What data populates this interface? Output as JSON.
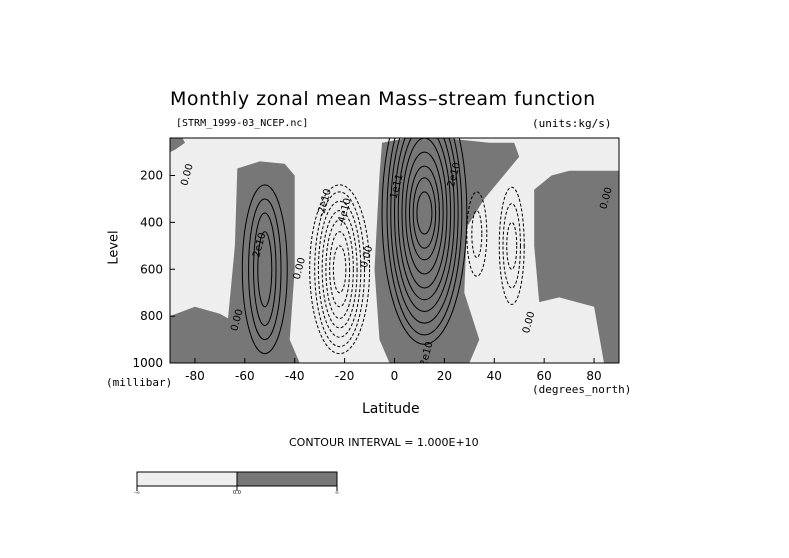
{
  "header": {
    "title": "Monthly zonal mean Mass–stream function",
    "filename": "[STRM_1999-03_NCEP.nc]",
    "units": "(units:kg/s)"
  },
  "footer": {
    "contour_interval": "CONTOUR INTERVAL = 1.000E+10"
  },
  "colors": {
    "positive_fill": "#777777",
    "negative_fill": "#eeeeee",
    "contour": "#000000"
  },
  "colorbar": {
    "labels": [
      "-∞",
      "0.0",
      "∞"
    ]
  },
  "chart_data": {
    "type": "contour",
    "xlabel": "Latitude",
    "ylabel": "Level",
    "xunit": "(degrees_north)",
    "yunit": "(millibar)",
    "xlim": [
      -90,
      90
    ],
    "ylim": [
      1000,
      40
    ],
    "y_scale": "linear, inverted (pressure)",
    "xticks": [
      -80,
      -60,
      -40,
      -20,
      0,
      20,
      40,
      60,
      80
    ],
    "xtick_labels": [
      "-80",
      "-60",
      "-40",
      "-20",
      "0",
      "20",
      "40",
      "60",
      "80"
    ],
    "yticks": [
      200,
      400,
      600,
      800,
      1000
    ],
    "ytick_labels": [
      "200",
      "400",
      "600",
      "800",
      "1000"
    ],
    "contour_interval": 10000000000.0,
    "shading": "positive values dark gray, negative values light gray",
    "cells": [
      {
        "center_lat": -50,
        "center_level": 600,
        "sign": "positive",
        "peak": 40000000000.0
      },
      {
        "center_lat": -22,
        "center_level": 600,
        "sign": "negative",
        "peak": -80000000000.0
      },
      {
        "center_lat": 12,
        "center_level": 320,
        "sign": "positive",
        "peak": 150000000000.0
      },
      {
        "center_lat": 33,
        "center_level": 450,
        "sign": "negative",
        "peak": -20000000000.0
      },
      {
        "center_lat": 45,
        "center_level": 480,
        "sign": "negative",
        "peak": -30000000000.0
      }
    ],
    "contour_labels": [
      {
        "text": "0.00",
        "lat": -82,
        "level": 200
      },
      {
        "text": "2e10",
        "lat": -53,
        "level": 500
      },
      {
        "text": "0.00",
        "lat": -62,
        "level": 820
      },
      {
        "text": "0.00",
        "lat": -37,
        "level": 600
      },
      {
        "text": "-2e10",
        "lat": -27,
        "level": 320
      },
      {
        "text": "-4e10",
        "lat": -19,
        "level": 360
      },
      {
        "text": "0.00",
        "lat": -10,
        "level": 550
      },
      {
        "text": "1e11",
        "lat": 2,
        "level": 250
      },
      {
        "text": "2e10",
        "lat": 25,
        "level": 200
      },
      {
        "text": "2e10",
        "lat": 14,
        "level": 965
      },
      {
        "text": "0.00",
        "lat": 55,
        "level": 830
      },
      {
        "text": "0.00",
        "lat": 86,
        "level": 300
      }
    ]
  }
}
